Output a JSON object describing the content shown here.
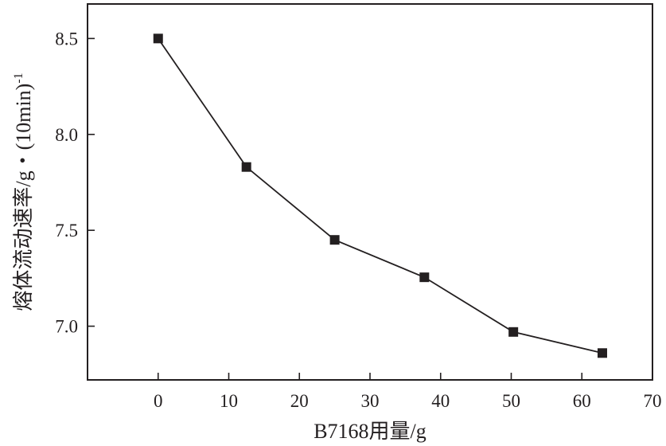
{
  "chart_data": {
    "type": "line",
    "title": "",
    "xlabel": "B7168用量/g",
    "ylabel_main": "熔体流动速率/g・(10min)",
    "ylabel_sup": "-1",
    "xlim": [
      -10,
      70
    ],
    "ylim": [
      6.72,
      8.68
    ],
    "xticks": [
      0,
      10,
      20,
      30,
      40,
      50,
      60,
      70
    ],
    "yticks": [
      7.0,
      7.5,
      8.0,
      8.5
    ],
    "ytick_labels": [
      "7.0",
      "7.5",
      "8.0",
      "8.5"
    ],
    "grid": false,
    "series": [
      {
        "marker": "square",
        "color": "#231f20",
        "x": [
          0,
          12.5,
          25,
          37.7,
          50.3,
          62.9
        ],
        "y": [
          8.5,
          7.83,
          7.45,
          7.255,
          6.97,
          6.86
        ]
      }
    ]
  }
}
